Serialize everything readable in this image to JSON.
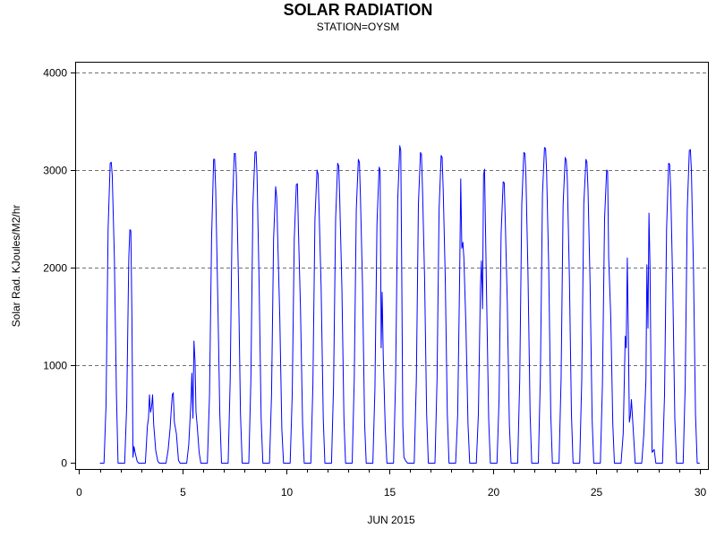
{
  "chart_data": {
    "type": "line",
    "title": "SOLAR RADIATION",
    "subtitle": "STATION=OYSM",
    "xlabel": "JUN 2015",
    "ylabel": "Solar Rad. KJoules/M2/hr",
    "xlim": [
      -0.15,
      30.4
    ],
    "ylim": [
      -60,
      4100
    ],
    "x_ticks": [
      0,
      5,
      10,
      15,
      20,
      25,
      30
    ],
    "y_ticks": [
      0,
      1000,
      2000,
      3000,
      4000
    ],
    "grid": "horizontal dashed",
    "line_color": "#0000ff",
    "series": [
      {
        "x": [
          1.2,
          1.3,
          1.4,
          1.5,
          1.55,
          1.6,
          1.7,
          1.8,
          1.88,
          2.2,
          2.3,
          2.4,
          2.45,
          2.5,
          2.55,
          2.6,
          2.65,
          2.7,
          2.8,
          2.88,
          3.2,
          3.3,
          3.35,
          3.4,
          3.45,
          3.5,
          3.55,
          3.6,
          3.7,
          3.8,
          3.88,
          4.2,
          4.3,
          4.4,
          4.45,
          4.5,
          4.55,
          4.6,
          4.7,
          4.8,
          4.88,
          5.2,
          5.3,
          5.4,
          5.45,
          5.5,
          5.55,
          5.6,
          5.65,
          5.7,
          5.8,
          5.88,
          6.2,
          6.3,
          6.4,
          6.5,
          6.55,
          6.6,
          6.7,
          6.8,
          6.88,
          7.2,
          7.3,
          7.4,
          7.5,
          7.55,
          7.6,
          7.7,
          7.8,
          7.88,
          8.2,
          8.3,
          8.4,
          8.5,
          8.55,
          8.6,
          8.7,
          8.8,
          8.88,
          9.2,
          9.3,
          9.4,
          9.5,
          9.55,
          9.6,
          9.7,
          9.8,
          9.88,
          10.2,
          10.3,
          10.4,
          10.5,
          10.55,
          10.6,
          10.7,
          10.8,
          10.88,
          11.2,
          11.3,
          11.4,
          11.5,
          11.55,
          11.6,
          11.7,
          11.8,
          11.88,
          12.2,
          12.3,
          12.4,
          12.5,
          12.55,
          12.6,
          12.7,
          12.8,
          12.88,
          13.2,
          13.3,
          13.4,
          13.5,
          13.55,
          13.6,
          13.7,
          13.8,
          13.88,
          14.2,
          14.3,
          14.4,
          14.5,
          14.55,
          14.6,
          14.65,
          14.7,
          14.8,
          14.88,
          15.2,
          15.3,
          15.4,
          15.5,
          15.55,
          15.6,
          15.65,
          15.7,
          15.8,
          15.88,
          16.2,
          16.3,
          16.4,
          16.5,
          16.55,
          16.6,
          16.7,
          16.8,
          16.88,
          17.2,
          17.3,
          17.4,
          17.5,
          17.55,
          17.6,
          17.7,
          17.8,
          17.88,
          18.2,
          18.3,
          18.4,
          18.45,
          18.5,
          18.55,
          18.6,
          18.7,
          18.8,
          18.88,
          19.2,
          19.3,
          19.4,
          19.45,
          19.5,
          19.55,
          19.6,
          19.7,
          19.8,
          19.88,
          20.2,
          20.3,
          20.4,
          20.5,
          20.55,
          20.6,
          20.7,
          20.8,
          20.88,
          21.2,
          21.3,
          21.4,
          21.5,
          21.55,
          21.6,
          21.7,
          21.8,
          21.88,
          22.2,
          22.3,
          22.4,
          22.5,
          22.55,
          22.6,
          22.7,
          22.8,
          22.88,
          23.2,
          23.3,
          23.4,
          23.5,
          23.55,
          23.6,
          23.7,
          23.8,
          23.88,
          24.2,
          24.3,
          24.4,
          24.5,
          24.55,
          24.6,
          24.7,
          24.8,
          24.88,
          25.2,
          25.3,
          25.4,
          25.5,
          25.55,
          25.6,
          25.7,
          25.8,
          25.88,
          26.2,
          26.3,
          26.4,
          26.45,
          26.5,
          26.55,
          26.6,
          26.65,
          26.7,
          26.8,
          26.88,
          27.2,
          27.3,
          27.4,
          27.45,
          27.5,
          27.55,
          27.6,
          27.65,
          27.7,
          27.8,
          27.88,
          28.2,
          28.3,
          28.4,
          28.5,
          28.55,
          28.6,
          28.7,
          28.8,
          28.88,
          29.2,
          29.3,
          29.4,
          29.5,
          29.55,
          29.6,
          29.7,
          29.8,
          29.88
        ],
        "y": [
          0,
          600,
          2400,
          3070,
          3080,
          2950,
          2100,
          700,
          0,
          0,
          600,
          2100,
          2390,
          2380,
          1500,
          60,
          170,
          110,
          20,
          0,
          0,
          380,
          460,
          700,
          520,
          580,
          700,
          400,
          130,
          20,
          0,
          0,
          130,
          360,
          540,
          700,
          720,
          420,
          300,
          30,
          0,
          0,
          190,
          620,
          920,
          460,
          1250,
          1050,
          520,
          400,
          110,
          0,
          0,
          700,
          2300,
          3110,
          3110,
          2800,
          1700,
          500,
          0,
          0,
          850,
          2600,
          3170,
          3170,
          2950,
          1900,
          500,
          0,
          0,
          850,
          2650,
          3180,
          3190,
          2950,
          1850,
          450,
          0,
          0,
          700,
          2300,
          2830,
          2720,
          2300,
          1500,
          350,
          0,
          0,
          700,
          2300,
          2850,
          2860,
          2400,
          1600,
          400,
          0,
          0,
          800,
          2500,
          3000,
          2960,
          2600,
          1800,
          450,
          0,
          0,
          800,
          2500,
          3070,
          3040,
          2700,
          1800,
          450,
          0,
          0,
          850,
          2600,
          3110,
          3080,
          2700,
          1800,
          400,
          0,
          0,
          750,
          2450,
          3030,
          3000,
          1180,
          1750,
          1100,
          350,
          0,
          0,
          850,
          2700,
          3250,
          3200,
          1800,
          380,
          60,
          20,
          0,
          0,
          850,
          2650,
          3180,
          3160,
          2800,
          1900,
          500,
          0,
          0,
          850,
          2600,
          3150,
          3130,
          2800,
          1900,
          500,
          0,
          0,
          500,
          2000,
          2910,
          2200,
          2260,
          2100,
          1400,
          400,
          0,
          0,
          500,
          1800,
          2070,
          1580,
          2950,
          3010,
          1700,
          450,
          0,
          0,
          650,
          2350,
          2880,
          2870,
          2500,
          1650,
          400,
          0,
          0,
          850,
          2650,
          3180,
          3170,
          2950,
          1950,
          500,
          0,
          0,
          900,
          2750,
          3230,
          3220,
          3000,
          2000,
          500,
          0,
          0,
          850,
          2650,
          3130,
          3100,
          2900,
          1900,
          500,
          0,
          0,
          850,
          2650,
          3110,
          3080,
          2800,
          1850,
          450,
          0,
          0,
          800,
          2500,
          3000,
          2990,
          2100,
          1500,
          400,
          0,
          0,
          300,
          1300,
          1180,
          2100,
          1350,
          420,
          480,
          650,
          300,
          0,
          0,
          300,
          850,
          2030,
          1380,
          2560,
          2000,
          900,
          110,
          140,
          0,
          0,
          700,
          2400,
          3070,
          3060,
          2800,
          1800,
          450,
          0,
          0,
          800,
          2600,
          3200,
          3210,
          3000,
          2000,
          500,
          0
        ]
      }
    ]
  }
}
